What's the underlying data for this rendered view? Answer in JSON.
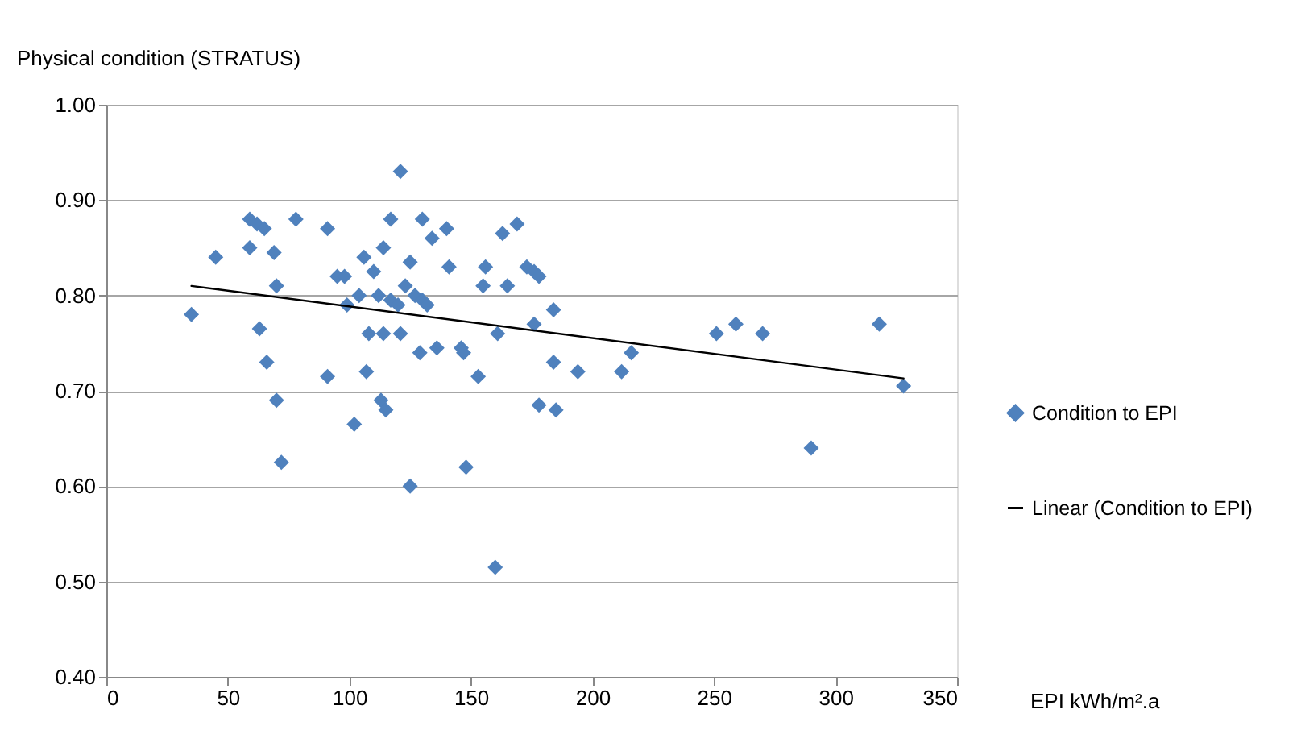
{
  "chart_data": {
    "type": "scatter",
    "xlabel": "EPI kWh/m².a",
    "ylabel": "Physical condition (STRATUS)",
    "xlim": [
      0,
      350
    ],
    "xticks": [
      0,
      50,
      100,
      150,
      200,
      250,
      300,
      350
    ],
    "ylim": [
      0.4,
      1.0
    ],
    "yticks": [
      {
        "value": 0.4,
        "label": "0.40"
      },
      {
        "value": 0.5,
        "label": "0.50"
      },
      {
        "value": 0.6,
        "label": "0.60"
      },
      {
        "value": 0.7,
        "label": "0.70"
      },
      {
        "value": 0.8,
        "label": "0.80"
      },
      {
        "value": 0.9,
        "label": "0.90"
      },
      {
        "value": 1.0,
        "label": "1.00"
      }
    ],
    "grid": "y",
    "legend": "right",
    "series": [
      {
        "name": "Condition to EPI",
        "marker": "diamond",
        "color": "#4f81bd",
        "x": [
          35,
          45,
          59,
          59,
          62,
          65,
          63,
          66,
          69,
          70,
          70,
          72,
          78,
          91,
          91,
          95,
          98,
          99,
          102,
          104,
          106,
          107,
          108,
          110,
          112,
          113,
          114,
          114,
          115,
          117,
          117,
          120,
          121,
          121,
          123,
          125,
          125,
          127,
          129,
          130,
          130,
          132,
          134,
          136,
          140,
          141,
          146,
          147,
          148,
          153,
          155,
          156,
          160,
          161,
          163,
          165,
          169,
          173,
          176,
          176,
          178,
          178,
          184,
          184,
          185,
          194,
          212,
          216,
          251,
          259,
          270,
          290,
          318,
          328
        ],
        "values": [
          0.78,
          0.84,
          0.88,
          0.85,
          0.875,
          0.87,
          0.765,
          0.73,
          0.845,
          0.81,
          0.69,
          0.625,
          0.88,
          0.87,
          0.715,
          0.82,
          0.82,
          0.79,
          0.665,
          0.8,
          0.84,
          0.72,
          0.76,
          0.825,
          0.8,
          0.69,
          0.76,
          0.85,
          0.68,
          0.88,
          0.795,
          0.79,
          0.93,
          0.76,
          0.81,
          0.835,
          0.6,
          0.8,
          0.74,
          0.795,
          0.88,
          0.79,
          0.86,
          0.745,
          0.87,
          0.83,
          0.745,
          0.74,
          0.62,
          0.715,
          0.81,
          0.83,
          0.515,
          0.76,
          0.865,
          0.81,
          0.875,
          0.83,
          0.77,
          0.825,
          0.685,
          0.82,
          0.785,
          0.73,
          0.68,
          0.72,
          0.72,
          0.74,
          0.76,
          0.77,
          0.76,
          0.64,
          0.77,
          0.705
        ]
      },
      {
        "name": "Linear (Condition to EPI)",
        "type": "line",
        "marker": "none",
        "line_style": "solid",
        "color": "#000000",
        "x": [
          35,
          328
        ],
        "values": [
          0.81,
          0.713
        ]
      }
    ]
  }
}
